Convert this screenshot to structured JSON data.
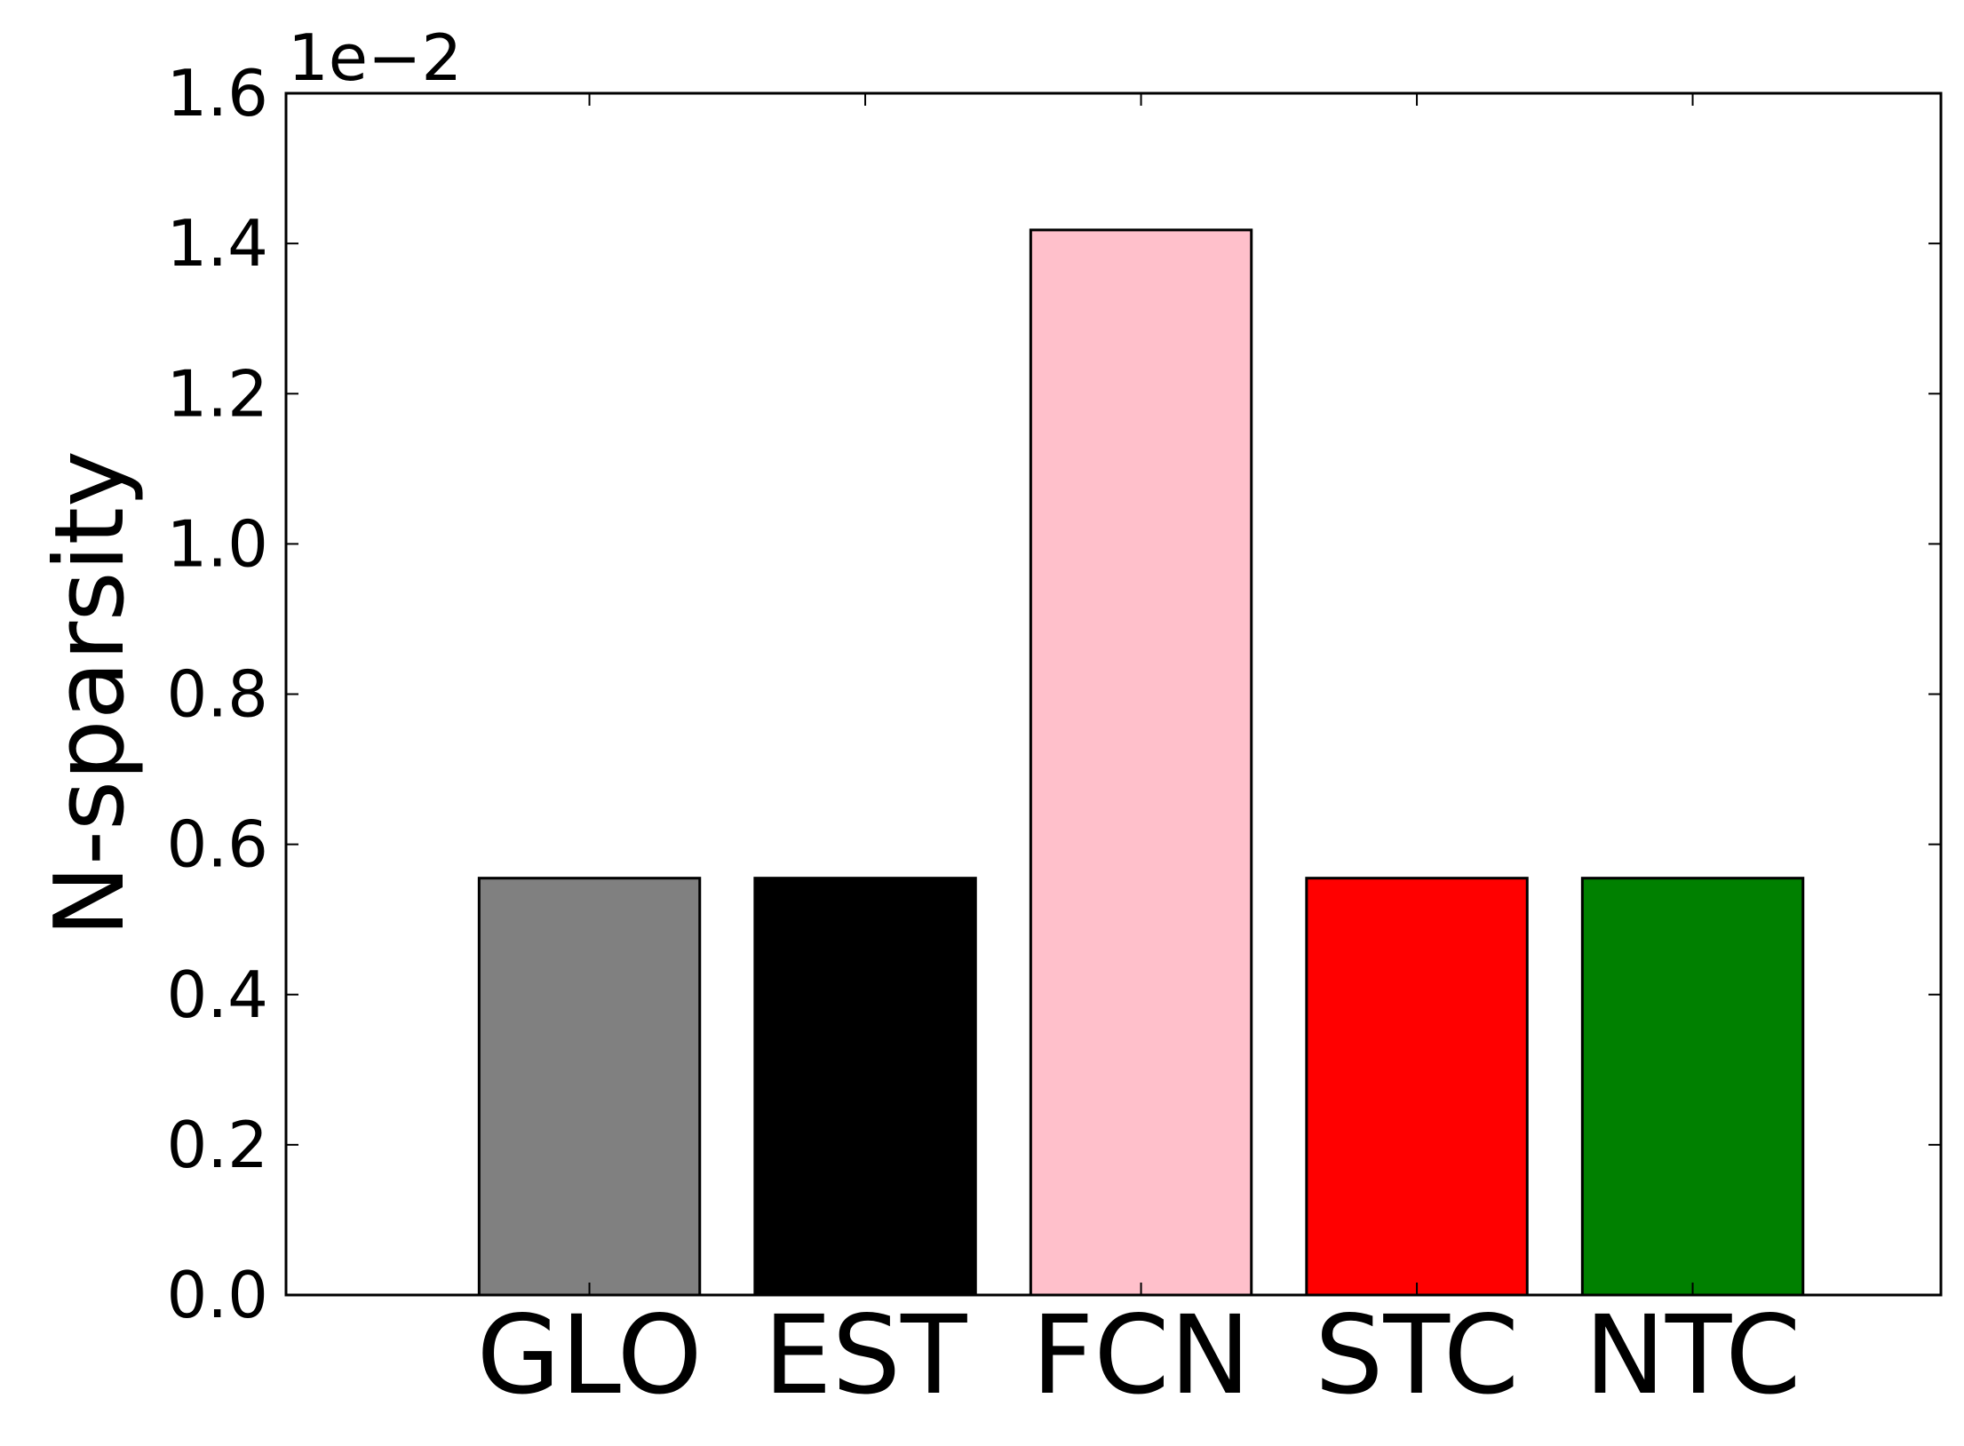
{
  "chart_data": {
    "type": "bar",
    "title": "",
    "xlabel": "",
    "ylabel": "N-sparsity",
    "scale_label": "1e−2",
    "categories": [
      "GLO",
      "EST",
      "FCN",
      "STC",
      "NTC"
    ],
    "values": [
      0.555,
      0.555,
      1.418,
      0.555,
      0.555
    ],
    "bar_colors": [
      "#808080",
      "#000000",
      "#ffc0cb",
      "#ff0000",
      "#008000"
    ],
    "edge_color": "#000000",
    "ylim": [
      0,
      1.6
    ],
    "xlim": [
      -1.1,
      4.9
    ],
    "yticks": [
      0.0,
      0.2,
      0.4,
      0.6,
      0.8,
      1.0,
      1.2,
      1.4,
      1.6
    ],
    "ytick_labels": [
      "0.0",
      "0.2",
      "0.4",
      "0.6",
      "0.8",
      "1.0",
      "1.2",
      "1.4",
      "1.6"
    ],
    "grid": false,
    "legend": "none"
  }
}
